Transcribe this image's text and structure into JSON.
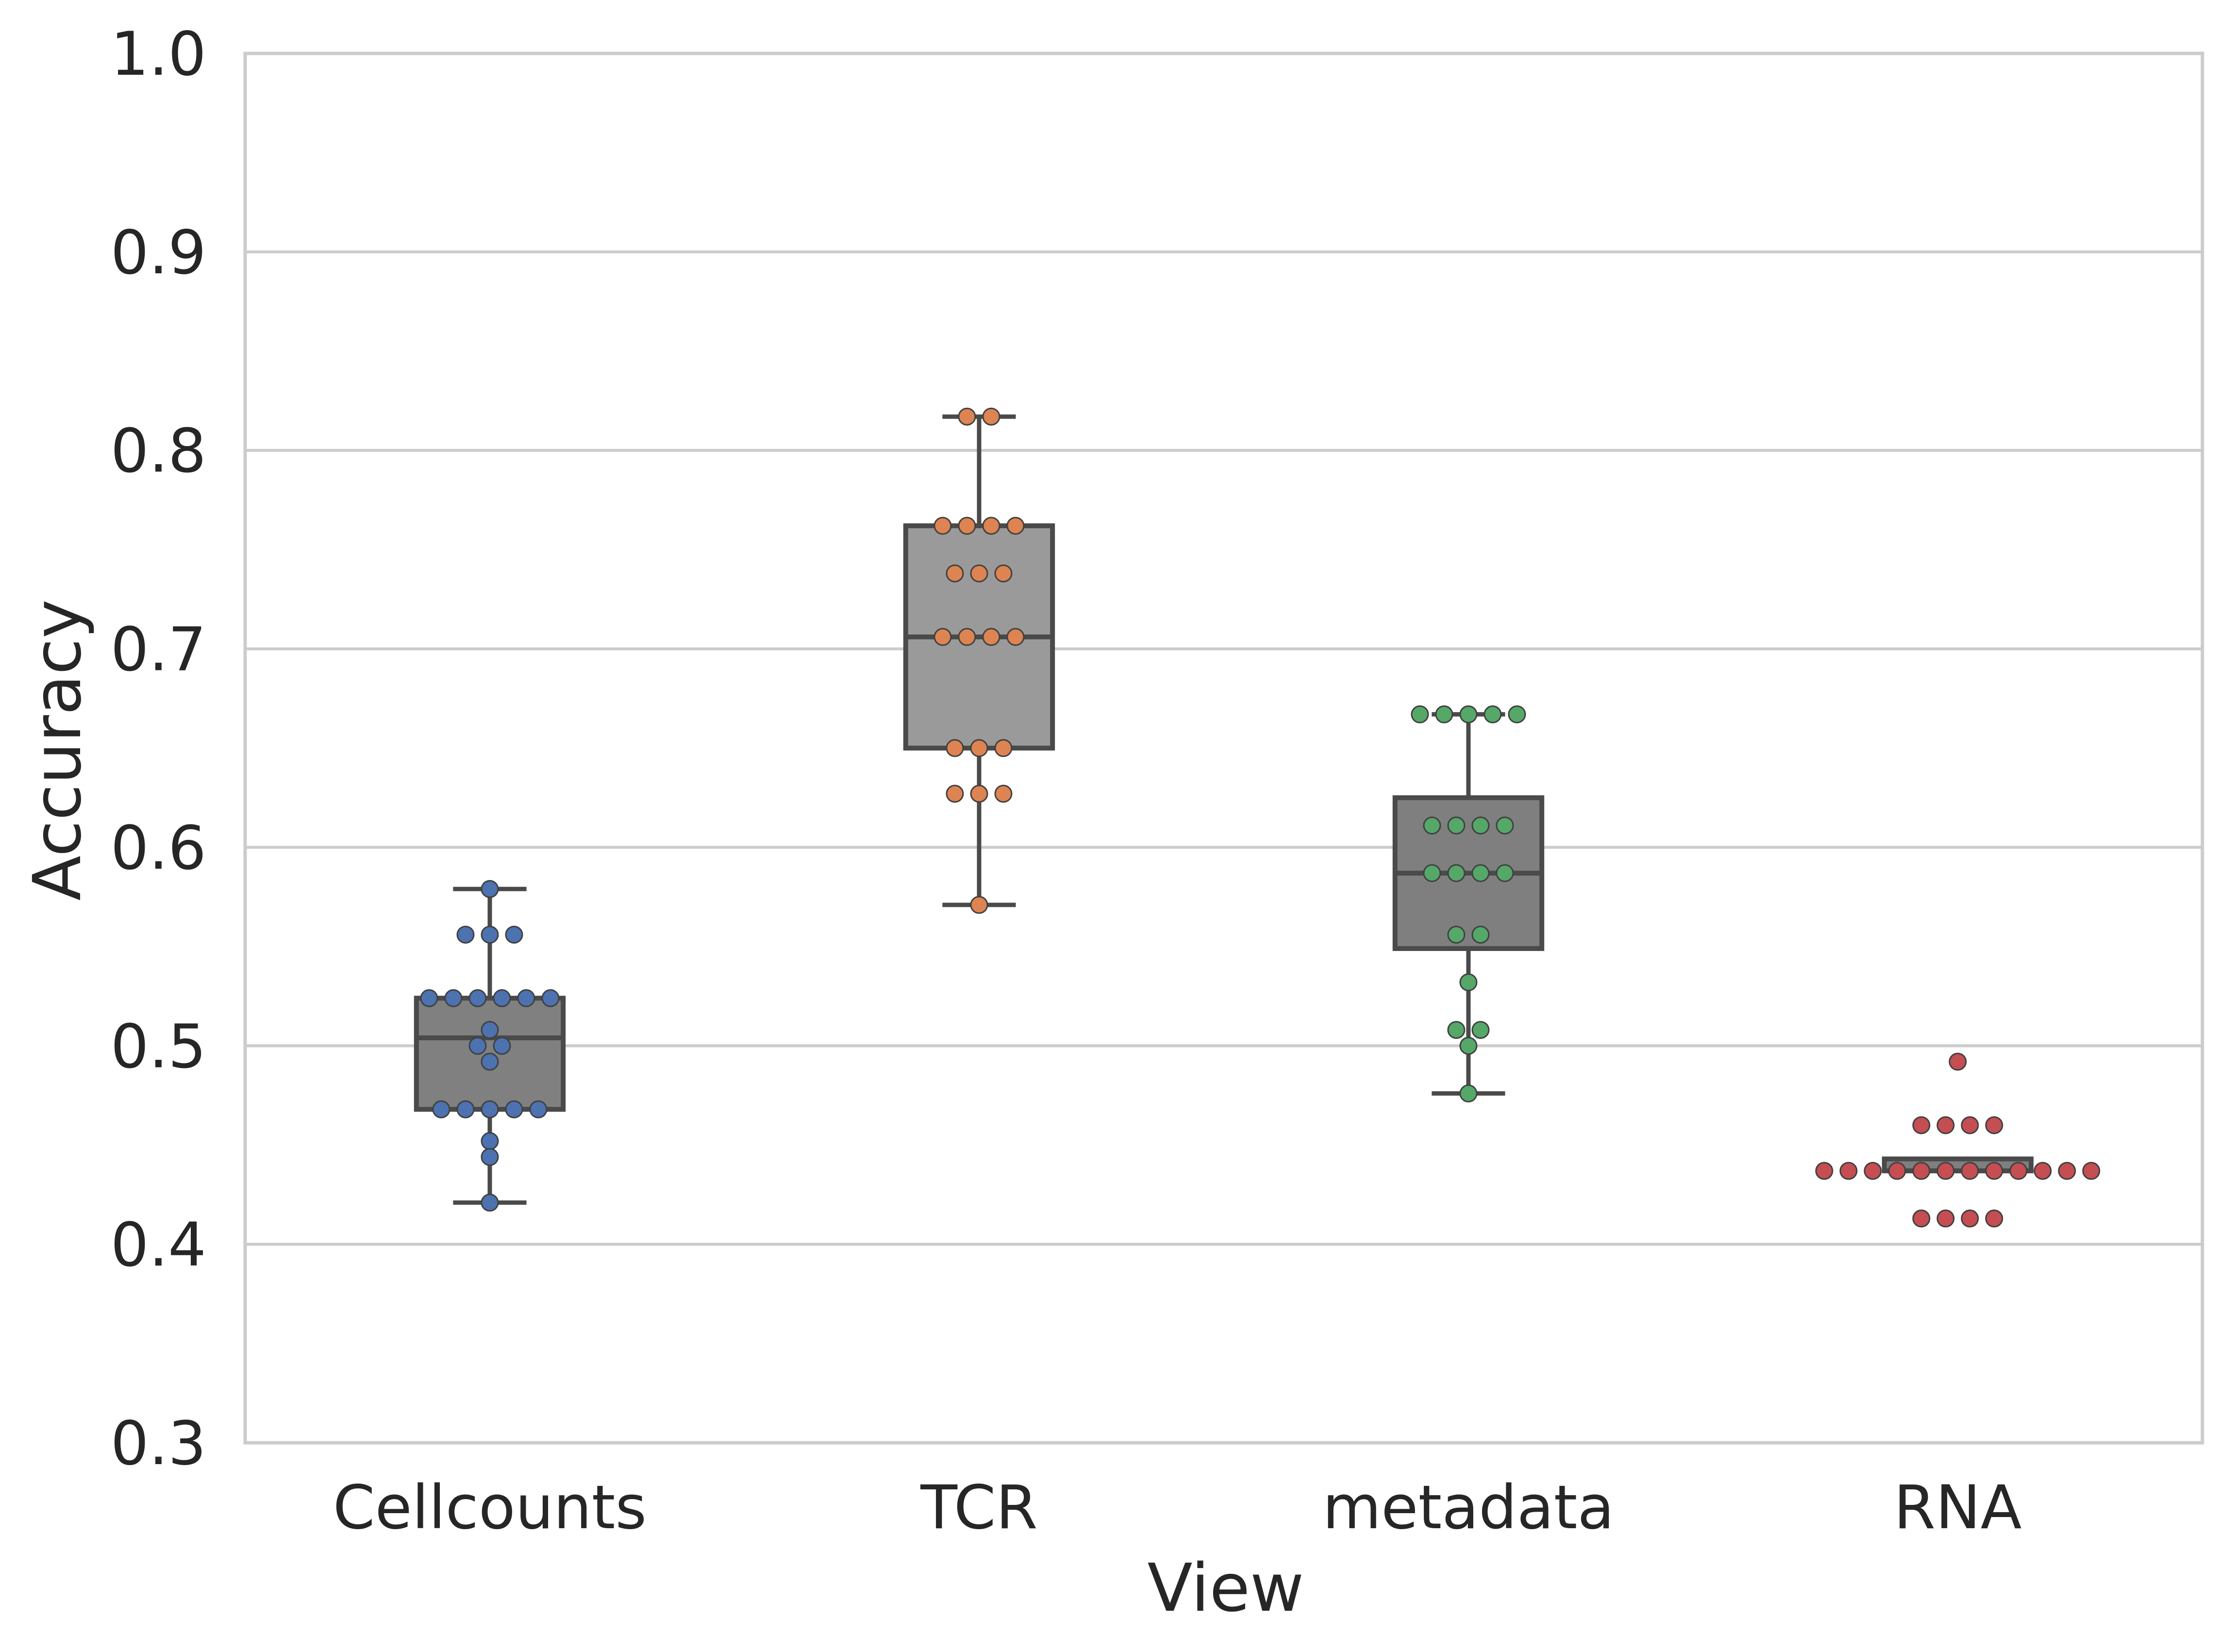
{
  "chart_data": {
    "type": "box",
    "xlabel": "View",
    "ylabel": "Accuracy",
    "ylim": [
      0.3,
      1.0
    ],
    "yticks": [
      "0.3",
      "0.4",
      "0.5",
      "0.6",
      "0.7",
      "0.8",
      "0.9",
      "1.0"
    ],
    "grid": "horizontal",
    "categories": [
      "Cellcounts",
      "TCR",
      "metadata",
      "RNA"
    ],
    "colors": {
      "point_colors": [
        "#4c72b0",
        "#dd8452",
        "#55a868",
        "#c44e52"
      ],
      "box_fills": [
        "#808080",
        "#9a9a9a",
        "#7f7f7f",
        "#7f7f7f"
      ],
      "box_edge": "#4a4a4a",
      "grid": "#cccccc",
      "spine": "#cccccc"
    },
    "boxes": [
      {
        "category": "Cellcounts",
        "min": 0.421,
        "q1": 0.468,
        "median": 0.504,
        "q3": 0.524,
        "max": 0.579
      },
      {
        "category": "TCR",
        "min": 0.571,
        "q1": 0.65,
        "median": 0.706,
        "q3": 0.762,
        "max": 0.817
      },
      {
        "category": "metadata",
        "min": 0.476,
        "q1": 0.549,
        "median": 0.587,
        "q3": 0.625,
        "max": 0.667
      },
      {
        "category": "RNA",
        "min": 0.437,
        "q1": 0.437,
        "median": 0.437,
        "q3": 0.443,
        "max": 0.443
      }
    ],
    "points": [
      [
        0.579,
        0.556,
        0.556,
        0.556,
        0.524,
        0.524,
        0.524,
        0.524,
        0.524,
        0.524,
        0.508,
        0.5,
        0.5,
        0.492,
        0.468,
        0.468,
        0.468,
        0.468,
        0.468,
        0.452,
        0.444,
        0.421
      ],
      [
        0.817,
        0.817,
        0.762,
        0.762,
        0.762,
        0.762,
        0.738,
        0.738,
        0.738,
        0.706,
        0.706,
        0.706,
        0.706,
        0.65,
        0.65,
        0.65,
        0.627,
        0.627,
        0.627,
        0.571
      ],
      [
        0.667,
        0.667,
        0.667,
        0.667,
        0.667,
        0.611,
        0.611,
        0.611,
        0.611,
        0.587,
        0.587,
        0.587,
        0.587,
        0.556,
        0.556,
        0.532,
        0.508,
        0.508,
        0.5,
        0.476
      ],
      [
        0.492,
        0.46,
        0.46,
        0.46,
        0.46,
        0.437,
        0.437,
        0.437,
        0.437,
        0.437,
        0.437,
        0.437,
        0.437,
        0.437,
        0.437,
        0.437,
        0.437,
        0.413,
        0.413,
        0.413,
        0.413
      ]
    ]
  }
}
